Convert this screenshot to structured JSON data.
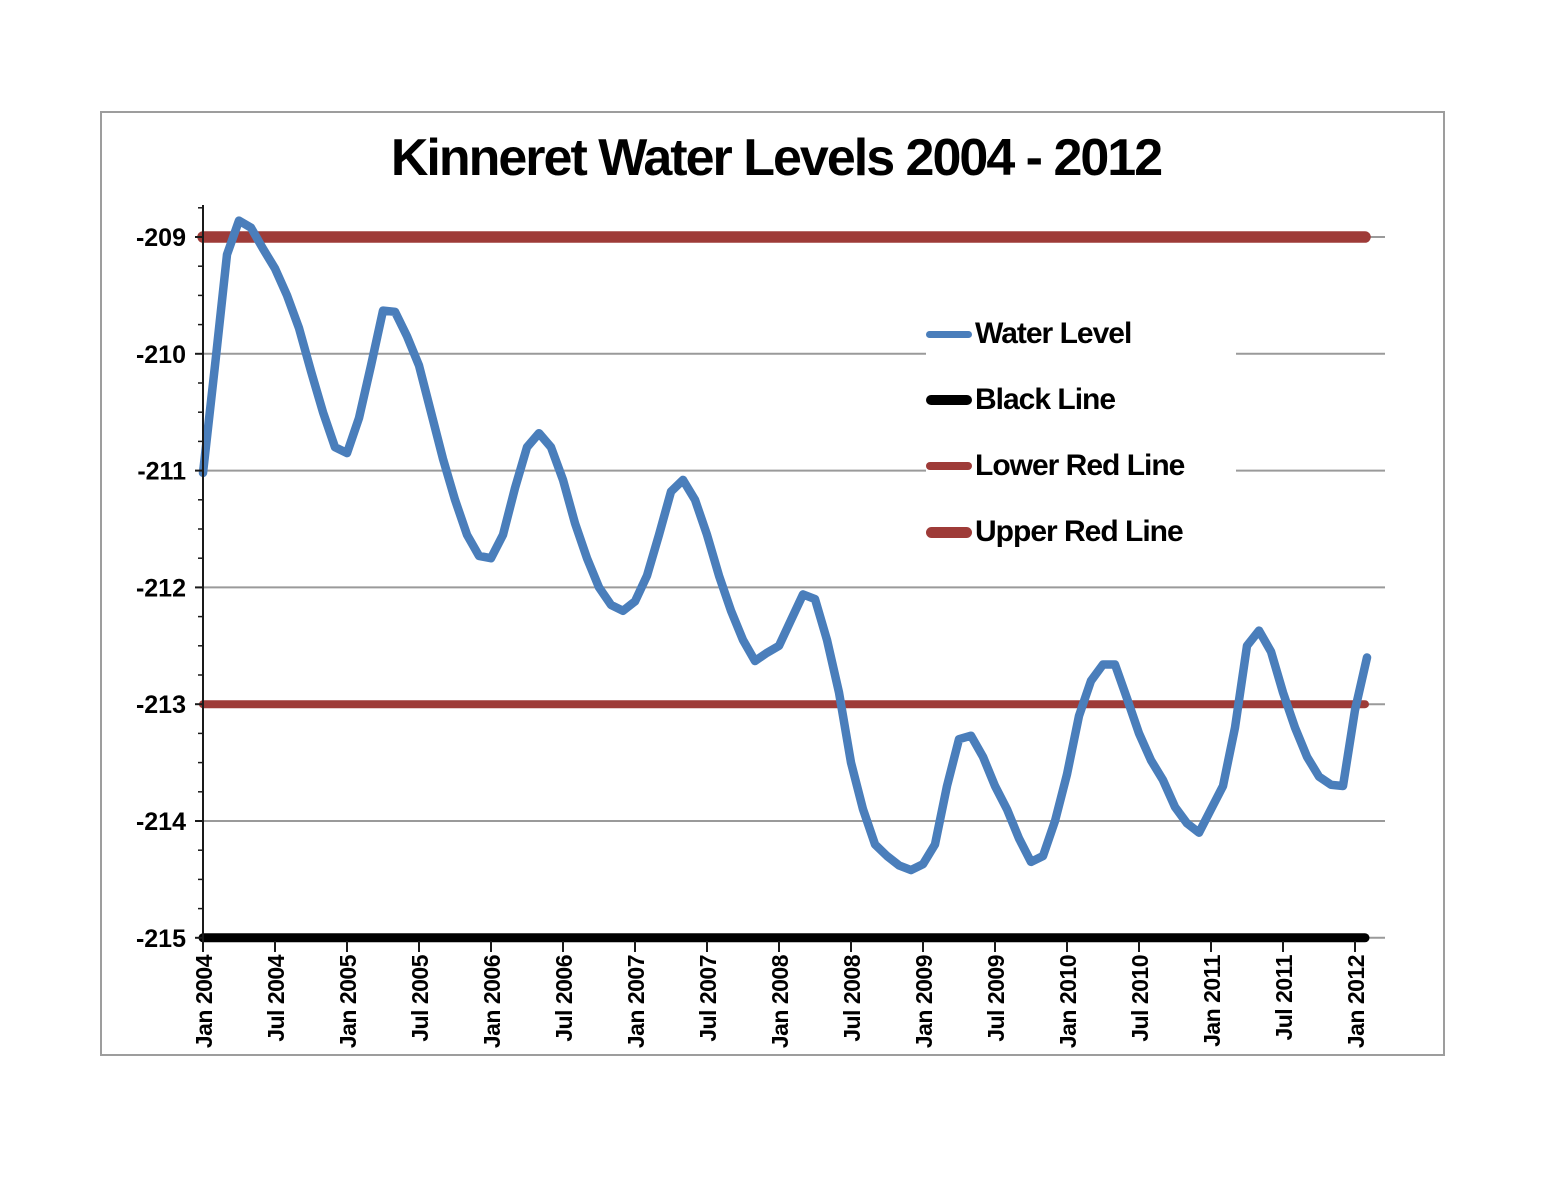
{
  "chart": {
    "title": "Kinneret Water Levels 2004 - 2012"
  },
  "colors": {
    "water_level": "#4a7ebb",
    "black_line": "#000000",
    "red_line": "#9e3b38",
    "gridline": "#9a9a9a",
    "axis": "#1a1a1a",
    "frame_border": "#9d9d9d",
    "background": "#ffffff",
    "text": "#000000"
  },
  "legend": {
    "items": [
      {
        "label": "Water Level",
        "color": "#4a7ebb",
        "thickness": 7
      },
      {
        "label": "Black Line",
        "color": "#000000",
        "thickness": 10
      },
      {
        "label": "Lower Red Line",
        "color": "#9e3b38",
        "thickness": 8
      },
      {
        "label": "Upper Red Line",
        "color": "#9e3b38",
        "thickness": 11
      }
    ]
  },
  "y_axis": {
    "ticks": [
      "-209",
      "-210",
      "-211",
      "-212",
      "-213",
      "-214",
      "-215"
    ],
    "tick_values": [
      -209,
      -210,
      -211,
      -212,
      -213,
      -214,
      -215
    ],
    "minor_step": 0.25,
    "min": -215,
    "max": -208.75
  },
  "x_axis": {
    "ticks": [
      "Jan 2004",
      "Jul 2004",
      "Jan 2005",
      "Jul 2005",
      "Jan 2006",
      "Jul 2006",
      "Jan 2007",
      "Jul 2007",
      "Jan 2008",
      "Jul 2008",
      "Jan 2009",
      "Jul 2009",
      "Jan 2010",
      "Jul 2010",
      "Jan 2011",
      "Jul 2011",
      "Jan 2012"
    ]
  },
  "chart_data": {
    "type": "line",
    "title": "Kinneret Water Levels 2004 - 2012",
    "xlabel": "",
    "ylabel": "",
    "ylim": [
      -215,
      -208.75
    ],
    "grid": true,
    "legend_position": "center-right",
    "x_interval": "monthly",
    "x_start": "Jan 2004",
    "x_end": "Feb 2012",
    "x_tick_labels": [
      "Jan 2004",
      "Jul 2004",
      "Jan 2005",
      "Jul 2005",
      "Jan 2006",
      "Jul 2006",
      "Jan 2007",
      "Jul 2007",
      "Jan 2008",
      "Jul 2008",
      "Jan 2009",
      "Jul 2009",
      "Jan 2010",
      "Jul 2010",
      "Jan 2011",
      "Jul 2011",
      "Jan 2012"
    ],
    "series": [
      {
        "name": "Water Level",
        "color": "#4a7ebb",
        "stroke_width": 8.5,
        "values": [
          -211.02,
          -210.1,
          -209.15,
          -208.86,
          -208.92,
          -209.1,
          -209.27,
          -209.5,
          -209.78,
          -210.15,
          -210.5,
          -210.8,
          -210.85,
          -210.55,
          -210.1,
          -209.63,
          -209.64,
          -209.85,
          -210.1,
          -210.5,
          -210.9,
          -211.25,
          -211.55,
          -211.73,
          -211.75,
          -211.55,
          -211.15,
          -210.8,
          -210.68,
          -210.8,
          -211.08,
          -211.45,
          -211.75,
          -212.0,
          -212.15,
          -212.2,
          -212.12,
          -211.9,
          -211.55,
          -211.18,
          -211.08,
          -211.25,
          -211.55,
          -211.9,
          -212.2,
          -212.45,
          -212.63,
          -212.56,
          -212.5,
          -212.28,
          -212.06,
          -212.1,
          -212.45,
          -212.9,
          -213.5,
          -213.9,
          -214.2,
          -214.3,
          -214.38,
          -214.42,
          -214.37,
          -214.2,
          -213.7,
          -213.3,
          -213.27,
          -213.45,
          -213.7,
          -213.9,
          -214.15,
          -214.35,
          -214.3,
          -214.0,
          -213.6,
          -213.1,
          -212.8,
          -212.66,
          -212.66,
          -212.95,
          -213.25,
          -213.48,
          -213.65,
          -213.88,
          -214.02,
          -214.1,
          -213.9,
          -213.7,
          -213.2,
          -212.5,
          -212.37,
          -212.55,
          -212.9,
          -213.2,
          -213.45,
          -213.62,
          -213.69,
          -213.7,
          -213.05,
          -212.6
        ]
      },
      {
        "name": "Black Line",
        "color": "#000000",
        "stroke_width": 9,
        "constant": -215
      },
      {
        "name": "Lower Red Line",
        "color": "#9e3b38",
        "stroke_width": 8,
        "constant": -213
      },
      {
        "name": "Upper Red Line",
        "color": "#9e3b38",
        "stroke_width": 11.5,
        "constant": -209
      }
    ]
  }
}
